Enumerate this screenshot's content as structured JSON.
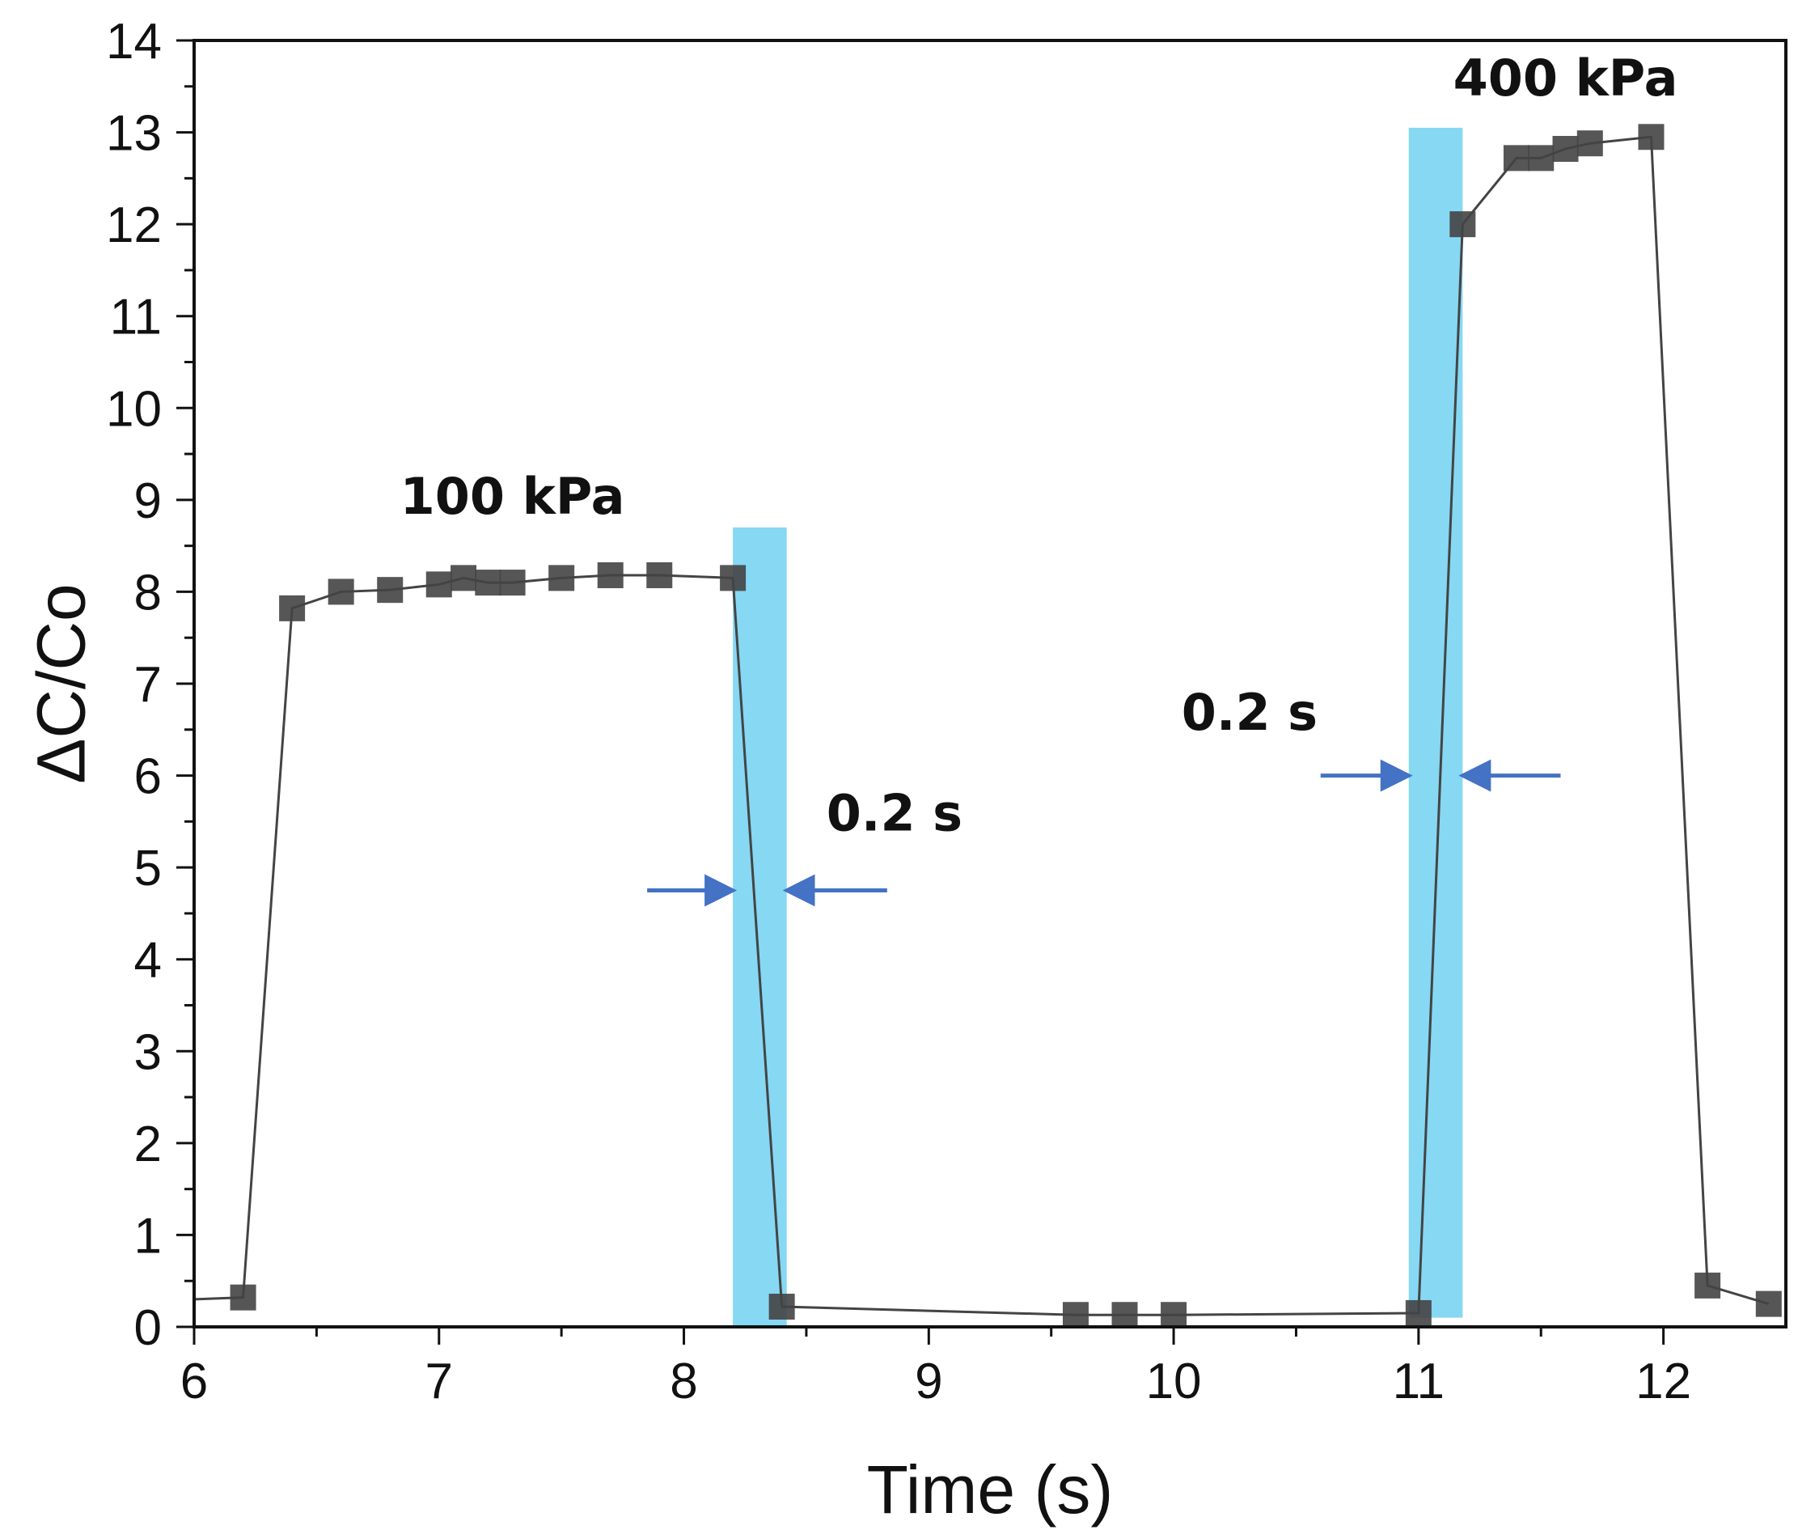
{
  "chart_data": {
    "type": "line",
    "title": "",
    "xlabel": "Time (s)",
    "ylabel": "ΔC/Co",
    "xlim": [
      6,
      12.5
    ],
    "ylim": [
      0,
      14
    ],
    "xticks": [
      6,
      7,
      8,
      9,
      10,
      11,
      12
    ],
    "yticks": [
      0,
      1,
      2,
      3,
      4,
      5,
      6,
      7,
      8,
      9,
      10,
      11,
      12,
      13,
      14
    ],
    "xtick_labels": [
      "6",
      "7",
      "8",
      "9",
      "10",
      "11",
      "12"
    ],
    "ytick_labels": [
      "0",
      "1",
      "2",
      "3",
      "4",
      "5",
      "6",
      "7",
      "8",
      "9",
      "10",
      "11",
      "12",
      "13",
      "14"
    ],
    "grid": false,
    "colors": {
      "series": "#444444",
      "highlight": "#7fd6f2",
      "arrow": "#4472c4"
    },
    "series": [
      {
        "name": "ΔC/Co",
        "line_start_x": 6.0,
        "line_start_y": 0.3,
        "x": [
          6.2,
          6.4,
          6.6,
          6.8,
          7.0,
          7.1,
          7.2,
          7.3,
          7.5,
          7.7,
          7.9,
          8.2,
          8.4,
          9.6,
          9.8,
          10.0,
          11.0,
          11.18,
          11.4,
          11.5,
          11.6,
          11.7,
          11.95,
          12.18,
          12.43
        ],
        "y": [
          0.32,
          7.82,
          8.0,
          8.02,
          8.08,
          8.15,
          8.1,
          8.1,
          8.15,
          8.18,
          8.18,
          8.15,
          0.22,
          0.13,
          0.13,
          0.13,
          0.15,
          12.0,
          12.72,
          12.72,
          12.82,
          12.88,
          12.95,
          0.45,
          0.25
        ]
      }
    ],
    "highlights": [
      {
        "x0": 8.2,
        "x1": 8.42,
        "y0": 0,
        "y1": 8.7
      },
      {
        "x0": 10.96,
        "x1": 11.18,
        "y0": 0.1,
        "y1": 13.05
      }
    ],
    "annotations": [
      {
        "id": "label-100kpa",
        "text": "100 kPa",
        "x": 7.3,
        "y": 8.85
      },
      {
        "id": "label-400kpa",
        "text": "400 kPa",
        "x": 11.6,
        "y": 13.4
      },
      {
        "id": "label-duration-1",
        "text": "0.2 s",
        "x": 8.86,
        "y": 5.4
      },
      {
        "id": "label-duration-2",
        "text": "0.2 s",
        "x": 10.31,
        "y": 6.5
      }
    ],
    "arrows": [
      {
        "x_from": 7.85,
        "x_to": 8.2,
        "y": 4.75
      },
      {
        "x_from": 8.83,
        "x_to": 8.42,
        "y": 4.75
      },
      {
        "x_from": 10.6,
        "x_to": 10.96,
        "y": 6.0
      },
      {
        "x_from": 11.58,
        "x_to": 11.18,
        "y": 6.0
      }
    ]
  }
}
